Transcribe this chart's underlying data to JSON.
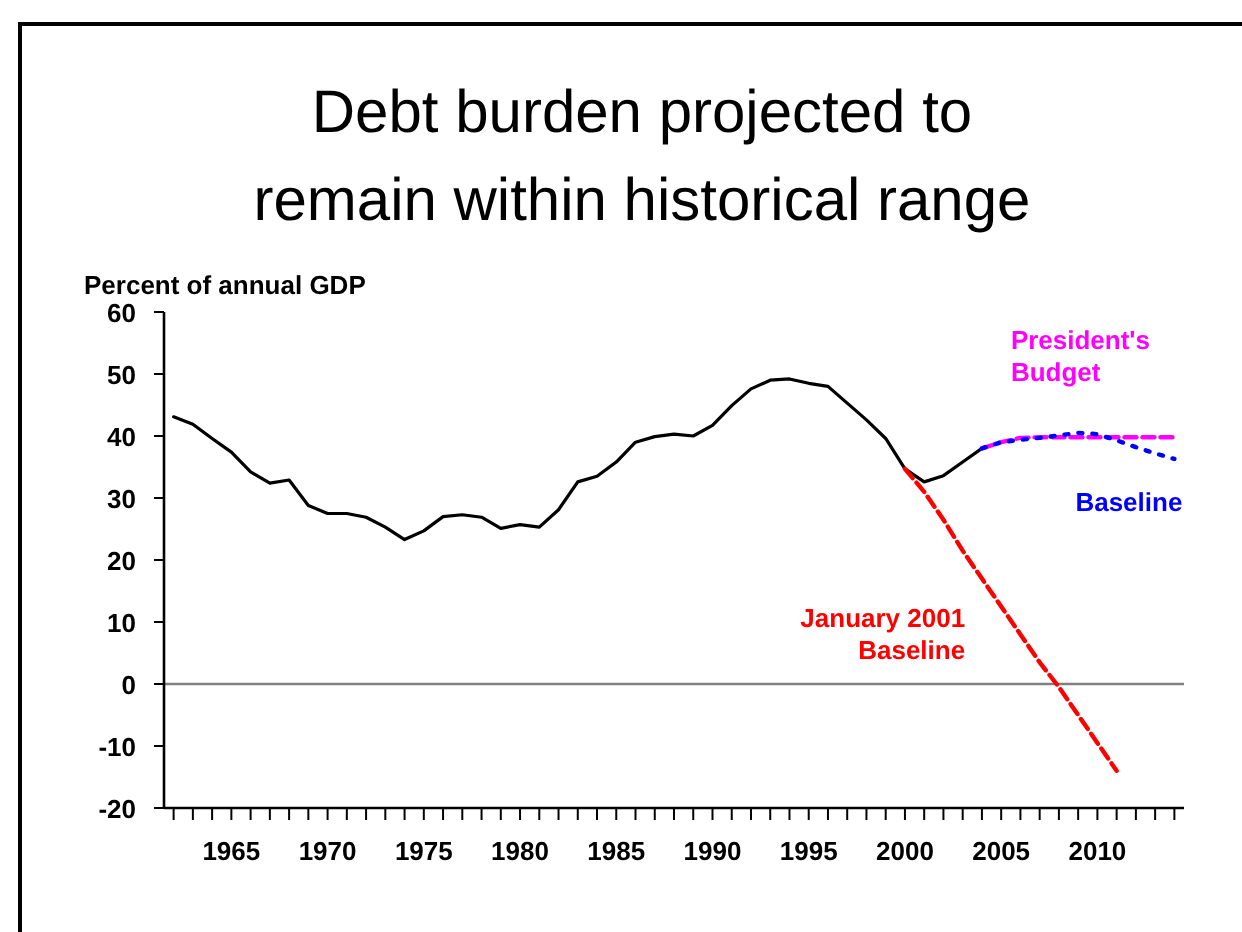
{
  "chart_data": {
    "type": "line",
    "title": "Debt burden projected to\nremain within historical range",
    "ylabel": "Percent of annual GDP",
    "xlim": [
      1961.5,
      2014.5
    ],
    "xticks": [
      {
        "value": 1962,
        "label": null
      },
      {
        "value": 1963,
        "label": null
      },
      {
        "value": 1964,
        "label": null
      },
      1965,
      {
        "value": 1966,
        "label": null
      },
      {
        "value": 1967,
        "label": null
      },
      {
        "value": 1968,
        "label": null
      },
      {
        "value": 1969,
        "label": null
      },
      1970,
      {
        "value": 1971,
        "label": null
      },
      {
        "value": 1972,
        "label": null
      },
      {
        "value": 1973,
        "label": null
      },
      {
        "value": 1974,
        "label": null
      },
      1975,
      {
        "value": 1976,
        "label": null
      },
      {
        "value": 1977,
        "label": null
      },
      {
        "value": 1978,
        "label": null
      },
      {
        "value": 1979,
        "label": null
      },
      1980,
      {
        "value": 1981,
        "label": null
      },
      {
        "value": 1982,
        "label": null
      },
      {
        "value": 1983,
        "label": null
      },
      {
        "value": 1984,
        "label": null
      },
      1985,
      {
        "value": 1986,
        "label": null
      },
      {
        "value": 1987,
        "label": null
      },
      {
        "value": 1988,
        "label": null
      },
      {
        "value": 1989,
        "label": null
      },
      1990,
      {
        "value": 1991,
        "label": null
      },
      {
        "value": 1992,
        "label": null
      },
      {
        "value": 1993,
        "label": null
      },
      {
        "value": 1994,
        "label": null
      },
      1995,
      {
        "value": 1996,
        "label": null
      },
      {
        "value": 1997,
        "label": null
      },
      {
        "value": 1998,
        "label": null
      },
      {
        "value": 1999,
        "label": null
      },
      2000,
      {
        "value": 2001,
        "label": null
      },
      {
        "value": 2002,
        "label": null
      },
      {
        "value": 2003,
        "label": null
      },
      {
        "value": 2004,
        "label": null
      },
      2005,
      {
        "value": 2006,
        "label": null
      },
      {
        "value": 2007,
        "label": null
      },
      {
        "value": 2008,
        "label": null
      },
      {
        "value": 2009,
        "label": null
      },
      2010,
      {
        "value": 2011,
        "label": null
      },
      {
        "value": 2012,
        "label": null
      },
      {
        "value": 2013,
        "label": null
      },
      {
        "value": 2014,
        "label": null
      }
    ],
    "ylim": [
      -20,
      60
    ],
    "yticks": [
      -20,
      -10,
      0,
      10,
      20,
      30,
      40,
      50,
      60
    ],
    "grid": false,
    "marker": "none",
    "ref_lines": [
      {
        "axis": "y",
        "value": 0,
        "color": "#808080"
      }
    ],
    "series": [
      {
        "color": "#000000",
        "line_style": "solid",
        "x": [
          1962,
          1963,
          1964,
          1965,
          1966,
          1967,
          1968,
          1969,
          1970,
          1971,
          1972,
          1973,
          1974,
          1975,
          1976,
          1977,
          1978,
          1979,
          1980,
          1981,
          1982,
          1983,
          1984,
          1985,
          1986,
          1987,
          1988,
          1989,
          1990,
          1991,
          1992,
          1993,
          1994,
          1995,
          1996,
          1997,
          1998,
          1999,
          2000,
          2001,
          2002,
          2003,
          2004
        ],
        "values": [
          43.1,
          41.9,
          39.6,
          37.4,
          34.2,
          32.4,
          32.9,
          28.8,
          27.5,
          27.5,
          26.9,
          25.3,
          23.3,
          24.7,
          27.0,
          27.3,
          26.9,
          25.1,
          25.7,
          25.3,
          28.1,
          32.6,
          33.5,
          35.8,
          39.0,
          39.9,
          40.3,
          40.0,
          41.7,
          44.9,
          47.6,
          49.0,
          49.2,
          48.5,
          48.0,
          45.3,
          42.6,
          39.6,
          34.7,
          32.6,
          33.6,
          35.8,
          38.0
        ]
      },
      {
        "name": "President's Budget",
        "color": "#ff00ff",
        "line_style": "dashed",
        "x": [
          2004,
          2005,
          2006,
          2007,
          2008,
          2009,
          2010,
          2011,
          2012,
          2013,
          2014
        ],
        "values": [
          38.0,
          39.0,
          39.7,
          39.8,
          39.8,
          39.8,
          39.8,
          39.8,
          39.8,
          39.8,
          39.8
        ]
      },
      {
        "name": "Baseline",
        "color": "#0000ff",
        "line_style": "dotted",
        "x": [
          2004,
          2005,
          2006,
          2007,
          2008,
          2009,
          2010,
          2011,
          2012,
          2013,
          2014
        ],
        "values": [
          38.0,
          39.0,
          39.4,
          39.7,
          40.1,
          40.5,
          40.3,
          39.3,
          38.2,
          37.2,
          36.3
        ]
      },
      {
        "name": "January 2001 Baseline",
        "color": "#ff0000",
        "line_style": "dashed",
        "x": [
          2000,
          2001,
          2002,
          2003,
          2004,
          2005,
          2006,
          2007,
          2008,
          2009,
          2010,
          2011
        ],
        "values": [
          34.7,
          31.0,
          26.5,
          21.5,
          17.0,
          12.5,
          8.0,
          3.5,
          -0.5,
          -5.0,
          -9.5,
          -14.0
        ]
      }
    ]
  }
}
